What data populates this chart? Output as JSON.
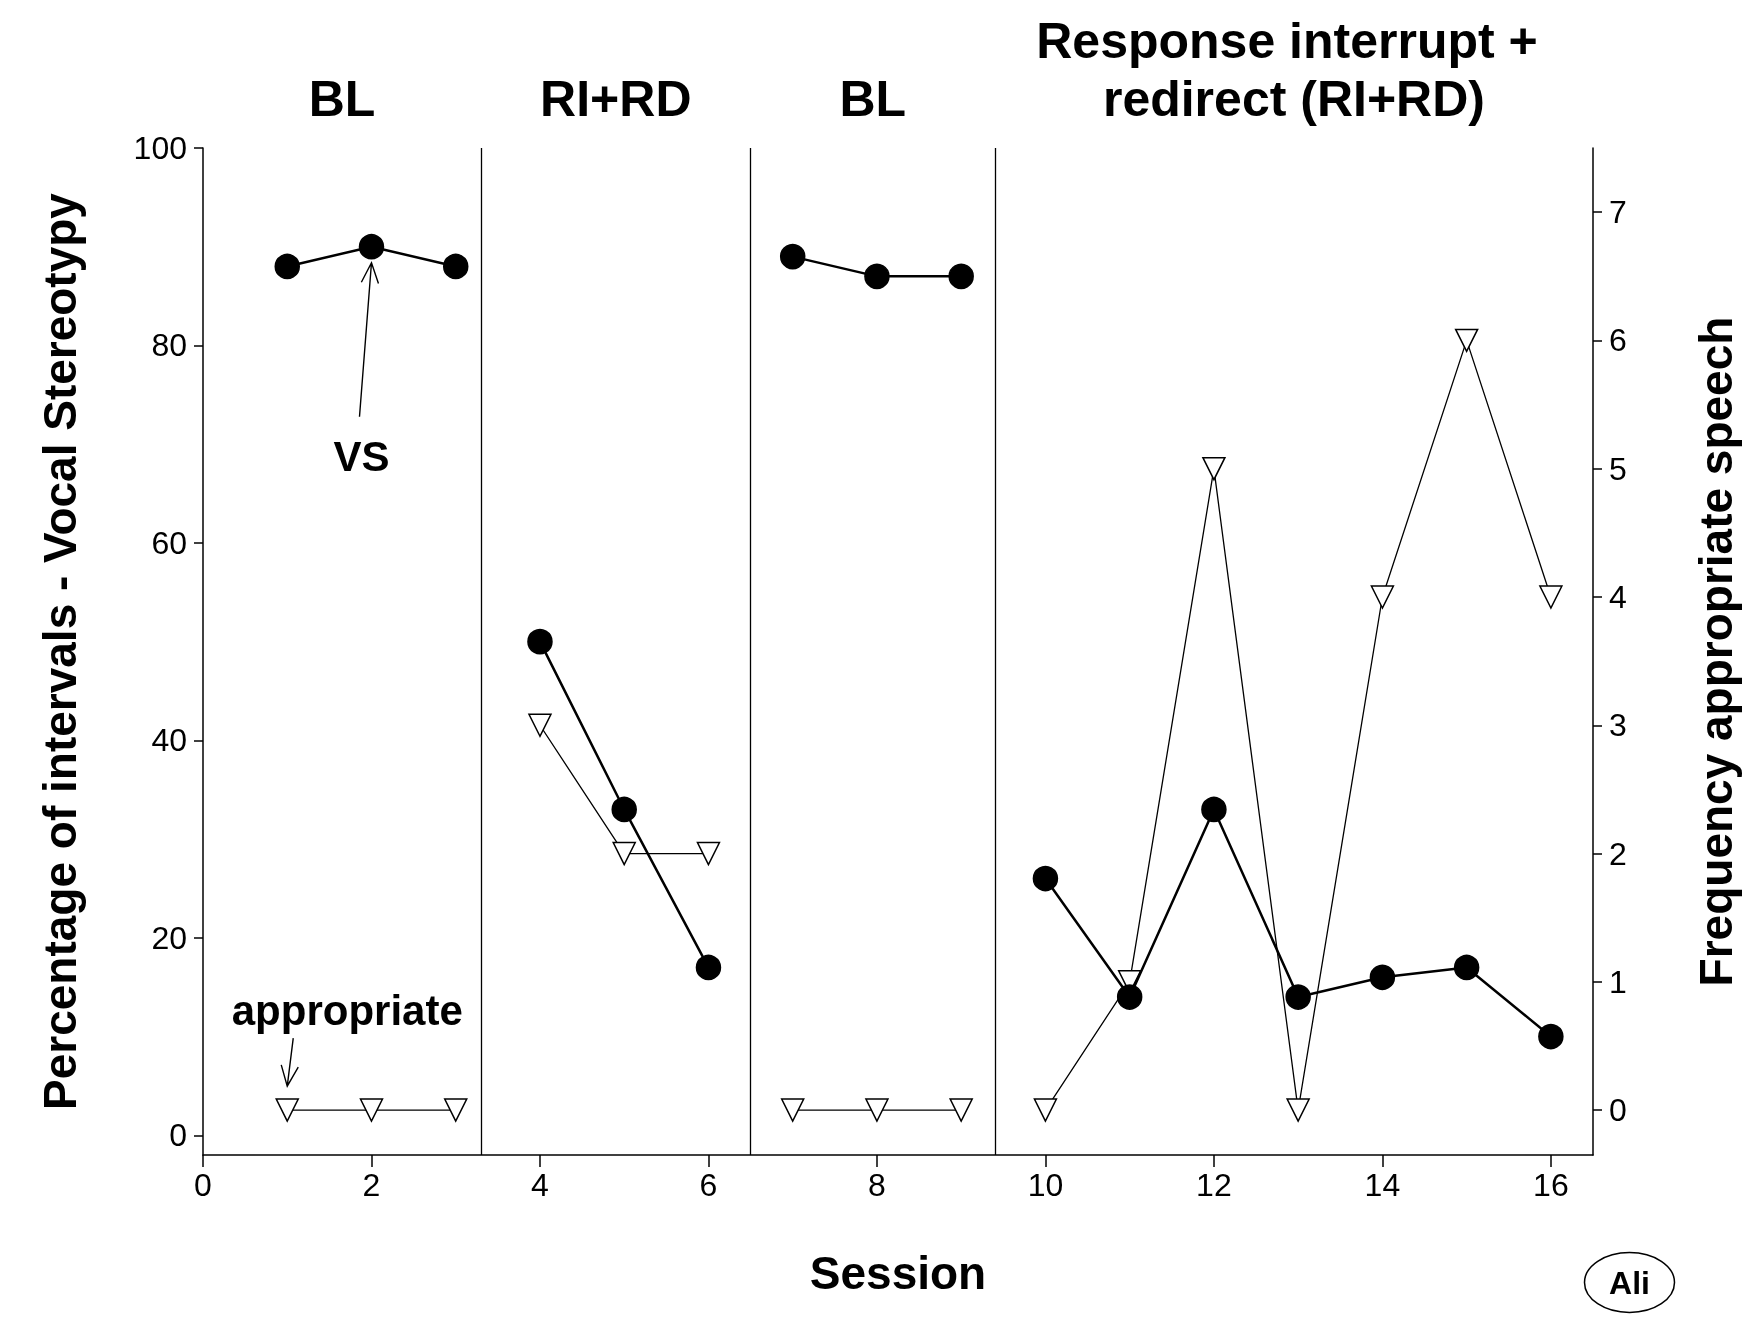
{
  "chart_data": {
    "type": "line",
    "xlabel": "Session",
    "ylabel": "Percentage of intervals - Vocal Stereotypy",
    "y2label": "Frequency appropriate speech",
    "x": [
      1,
      2,
      3,
      4,
      5,
      6,
      7,
      8,
      9,
      10,
      11,
      12,
      13,
      14,
      15,
      16
    ],
    "series": [
      {
        "name": "VS",
        "color": "#000000",
        "marker": "circle",
        "values": [
          88,
          90,
          88,
          50,
          33,
          17,
          89,
          87,
          87,
          26,
          14,
          33,
          14,
          16,
          17,
          10
        ]
      },
      {
        "name": "appropriate",
        "color": "#000000",
        "marker": "triangle",
        "axis": "y2",
        "values": [
          0,
          0,
          0,
          3,
          2,
          2,
          0,
          0,
          0,
          0,
          1,
          5,
          0,
          4,
          6,
          4
        ]
      }
    ],
    "xlim": [
      0,
      16.5
    ],
    "xticks": [
      0,
      2,
      4,
      6,
      8,
      10,
      12,
      14,
      16
    ],
    "ylim": [
      -2,
      100
    ],
    "yticks": [
      0,
      20,
      40,
      60,
      80,
      100
    ],
    "y2lim": [
      -0.35,
      7.5
    ],
    "y2ticks": [
      0,
      1,
      2,
      3,
      4,
      5,
      6,
      7
    ],
    "ref_lines": [
      {
        "axis": "x",
        "value": 3.3
      },
      {
        "axis": "x",
        "value": 6.5
      },
      {
        "axis": "x",
        "value": 9.4
      }
    ],
    "annotations": [
      "BL",
      "RI+RD",
      "BL",
      "Response interrupt + redirect (RI+RD)",
      "Ali"
    ],
    "grid": false,
    "line_style": "solid"
  }
}
